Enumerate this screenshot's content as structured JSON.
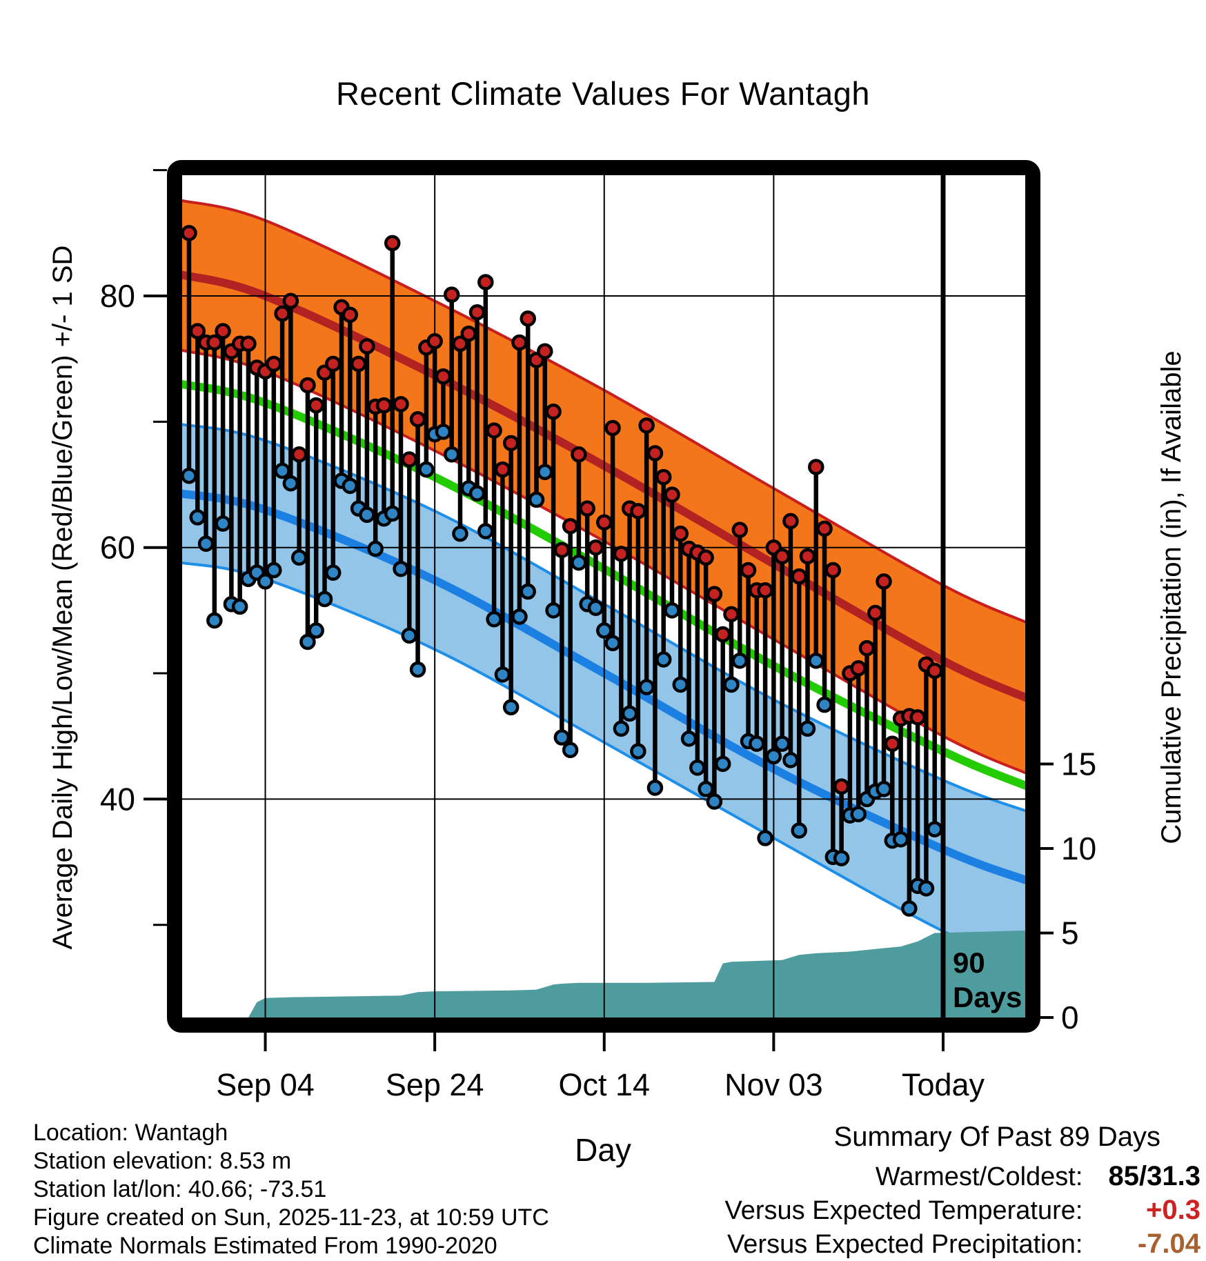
{
  "title": "Recent Climate Values For Wantagh",
  "axes": {
    "left_label": "Average Daily High/Low/Mean (Red/Blue/Green) +/- 1 SD",
    "right_label": "Cumulative Precipitation (in), If Available",
    "x_label": "Day",
    "left_major_ticks": [
      80,
      60,
      40
    ],
    "left_minor_ticks": [
      90,
      70,
      50,
      30
    ],
    "right_ticks": [
      15,
      10,
      5,
      0
    ],
    "x_ticks": [
      {
        "label": "Sep 04",
        "day": 9
      },
      {
        "label": "Sep 24",
        "day": 29
      },
      {
        "label": "Oct 14",
        "day": 49
      },
      {
        "label": "Nov 03",
        "day": 69
      },
      {
        "label": "Today",
        "day": 89
      }
    ]
  },
  "annotations": {
    "period_line1": "90",
    "period_line2": "Days",
    "today_line_day": 89
  },
  "footer_left": {
    "line1": "Location: Wantagh",
    "line2": "Station elevation: 8.53 m",
    "line3": "Station lat/lon: 40.66; -73.51",
    "line4": "Figure created on Sun, 2025-11-23, at 10:59 UTC",
    "line5": "Climate Normals Estimated From 1990-2020"
  },
  "summary": {
    "title": "Summary Of Past 89 Days",
    "rows": [
      {
        "label": "Warmest/Coldest:",
        "value": "85/31.3",
        "color": "#000000"
      },
      {
        "label": "Versus Expected Temperature:",
        "value": "+0.3",
        "color": "#CC2222"
      },
      {
        "label": "Versus Expected Precipitation:",
        "value": "-7.04",
        "color": "#A8622F"
      }
    ]
  },
  "colors": {
    "orange_band": "#F4761B",
    "band_edge_red": "#C81E1E",
    "high_mean_line": "#B22222",
    "mean_line": "#23CC00",
    "blue_band": "#92C5E8",
    "band_edge_blue": "#1E8FE8",
    "low_mean_line": "#1C7FE2",
    "stem": "#000000",
    "high_dot": "#C42121",
    "low_dot": "#2F84C4",
    "precip_fill": "#4E9C9E",
    "grid": "#000000",
    "today_line": "#000000"
  },
  "chart_data": {
    "type": "composite",
    "subtype": "daily high/low stems + climate normal bands + cumulative precipitation area",
    "x_unit": "day index over past 89 days (0 = 89 days ago, 89 = Today)",
    "ylim_temp": [
      22,
      90
    ],
    "ylim_precip_ticks": [
      0,
      5,
      10,
      15
    ],
    "grid": "on",
    "daily": {
      "highs": [
        85,
        77.2,
        76.3,
        76.3,
        77.2,
        75.6,
        76.2,
        76.2,
        74.3,
        74,
        74.6,
        78.6,
        79.6,
        67.4,
        72.9,
        71.3,
        73.9,
        74.6,
        79.1,
        78.5,
        74.6,
        76,
        71.2,
        71.3,
        84.2,
        71.4,
        67,
        70.2,
        75.9,
        76.4,
        73.6,
        80.1,
        76.2,
        77,
        78.7,
        81.1,
        69.3,
        66.2,
        68.3,
        76.3,
        78.2,
        74.9,
        75.6,
        70.8,
        59.8,
        61.7,
        67.4,
        63.1,
        60,
        62,
        69.5,
        59.5,
        63.1,
        62.9,
        69.7,
        67.5,
        65.6,
        64.2,
        61.1,
        59.9,
        59.6,
        59.2,
        56.3,
        53.1,
        54.7,
        61.4,
        58.2,
        56.6,
        56.6,
        60,
        59.3,
        62.1,
        57.7,
        59.3,
        66.4,
        61.5,
        58.2,
        41,
        50,
        50.4,
        52,
        54.8,
        57.3,
        44.4,
        46.4,
        46.6,
        46.5,
        50.7,
        50.2
      ],
      "lows": [
        65.7,
        62.4,
        60.3,
        54.2,
        61.9,
        55.5,
        55.3,
        57.5,
        58,
        57.3,
        58.2,
        66.1,
        65.1,
        59.2,
        52.5,
        53.4,
        55.9,
        58,
        65.3,
        64.9,
        63.1,
        62.6,
        59.9,
        62.3,
        62.7,
        58.3,
        53,
        50.3,
        66.2,
        69,
        69.2,
        67.4,
        61.1,
        64.7,
        64.3,
        61.3,
        54.3,
        49.9,
        47.3,
        54.5,
        56.5,
        63.8,
        66,
        55,
        44.9,
        43.9,
        58.8,
        55.5,
        55.2,
        53.4,
        52.4,
        45.6,
        46.8,
        43.8,
        48.9,
        40.9,
        51.1,
        55,
        49.1,
        44.8,
        42.5,
        40.8,
        39.8,
        42.8,
        49.1,
        51,
        44.6,
        44.4,
        36.9,
        43.4,
        44.4,
        43.1,
        37.5,
        45.6,
        51,
        47.5,
        35.4,
        35.3,
        38.7,
        38.8,
        40,
        40.6,
        40.8,
        36.7,
        36.8,
        31.3,
        33.1,
        32.9,
        37.6
      ]
    },
    "normals": {
      "days": [
        -1,
        9,
        29,
        49,
        69,
        89,
        99
      ],
      "high_upper": [
        87.6,
        86.0,
        79.6,
        72.5,
        64.7,
        57.0,
        54.0
      ],
      "high_mean": [
        81.7,
        80.0,
        73.7,
        66.5,
        58.7,
        51.0,
        48.0
      ],
      "high_lower": [
        75.7,
        74.0,
        67.7,
        60.5,
        52.7,
        45.0,
        42.0
      ],
      "mean": [
        73.0,
        71.5,
        65.6,
        58.3,
        50.6,
        43.8,
        41.0
      ],
      "low_upper": [
        69.8,
        68.5,
        62.9,
        55.5,
        47.9,
        41.5,
        39.0
      ],
      "low_mean": [
        64.3,
        63.0,
        57.4,
        50.0,
        42.4,
        36.0,
        33.5
      ],
      "low_lower": [
        58.8,
        57.5,
        51.9,
        44.5,
        36.9,
        29.5,
        27.0
      ]
    },
    "precip_cumulative": {
      "days": [
        -1,
        7,
        8,
        9,
        12,
        19,
        25,
        27,
        29,
        38,
        41,
        43,
        44,
        46,
        54,
        62,
        63,
        64,
        70,
        72,
        74,
        78,
        80,
        82,
        84,
        85,
        86,
        87,
        88,
        99
      ],
      "values": [
        0,
        0,
        0.9,
        1.15,
        1.2,
        1.25,
        1.3,
        1.5,
        1.55,
        1.6,
        1.65,
        1.95,
        2.0,
        2.05,
        2.05,
        2.1,
        3.2,
        3.3,
        3.4,
        3.7,
        3.8,
        3.9,
        4.0,
        4.1,
        4.2,
        4.35,
        4.5,
        4.75,
        5.0,
        5.15
      ]
    }
  }
}
